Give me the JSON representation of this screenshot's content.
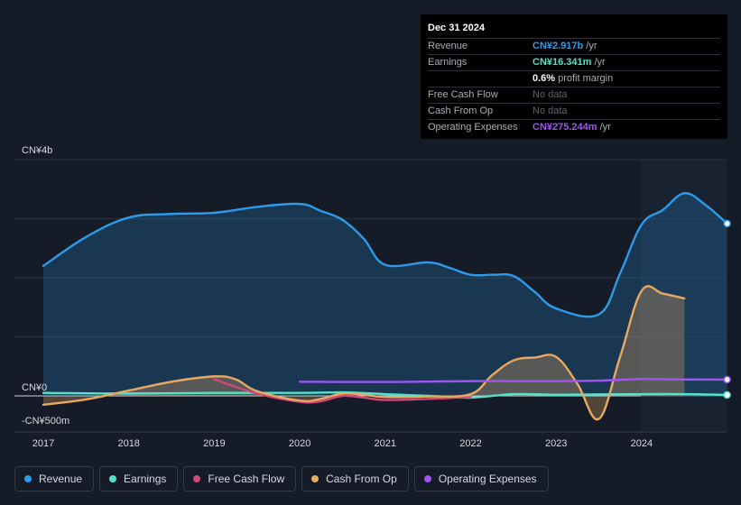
{
  "tooltip": {
    "date": "Dec 31 2024",
    "rows": [
      {
        "label": "Revenue",
        "value": "CN¥2.917b",
        "unit": "/yr",
        "color": "#2e9bea"
      },
      {
        "label": "Earnings",
        "value": "CN¥16.341m",
        "unit": "/yr",
        "color": "#54e3c8"
      },
      {
        "label": "",
        "value": "0.6%",
        "unit": "profit margin",
        "color": "#ffffff"
      },
      {
        "label": "Free Cash Flow",
        "value": "No data",
        "unit": "",
        "color": "nodata"
      },
      {
        "label": "Cash From Op",
        "value": "No data",
        "unit": "",
        "color": "nodata"
      },
      {
        "label": "Operating Expenses",
        "value": "CN¥275.244m",
        "unit": "/yr",
        "color": "#a154f2"
      }
    ]
  },
  "legend": [
    {
      "label": "Revenue",
      "color": "#2e9bea"
    },
    {
      "label": "Earnings",
      "color": "#54e3c8"
    },
    {
      "label": "Free Cash Flow",
      "color": "#d3487a"
    },
    {
      "label": "Cash From Op",
      "color": "#e8aa62"
    },
    {
      "label": "Operating Expenses",
      "color": "#a154f2"
    }
  ],
  "chart_data": {
    "type": "area",
    "y_axis_labels": [
      {
        "value": 4000,
        "label": "CN¥4b"
      },
      {
        "value": 0,
        "label": "CN¥0"
      },
      {
        "value": -500,
        "label": "-CN¥500m"
      }
    ],
    "ylim": [
      -500,
      4000
    ],
    "xlim": [
      2017,
      2025
    ],
    "x_ticks": [
      2017,
      2018,
      2019,
      2020,
      2021,
      2022,
      2023,
      2024
    ],
    "forecast_start": 2024,
    "series": [
      {
        "name": "Revenue",
        "color": "#2e9bea",
        "filled": true,
        "points": [
          [
            2017,
            2200
          ],
          [
            2017.5,
            2690
          ],
          [
            2018,
            3020
          ],
          [
            2018.5,
            3080
          ],
          [
            2019,
            3100
          ],
          [
            2019.5,
            3200
          ],
          [
            2020,
            3250
          ],
          [
            2020.25,
            3130
          ],
          [
            2020.5,
            2980
          ],
          [
            2020.75,
            2660
          ],
          [
            2021,
            2220
          ],
          [
            2021.5,
            2260
          ],
          [
            2021.75,
            2170
          ],
          [
            2022,
            2050
          ],
          [
            2022.25,
            2050
          ],
          [
            2022.5,
            2030
          ],
          [
            2022.75,
            1760
          ],
          [
            2023,
            1480
          ],
          [
            2023.5,
            1380
          ],
          [
            2023.75,
            2080
          ],
          [
            2024,
            2900
          ],
          [
            2024.25,
            3150
          ],
          [
            2024.5,
            3430
          ],
          [
            2024.75,
            3230
          ],
          [
            2025,
            2917
          ]
        ]
      },
      {
        "name": "Earnings",
        "color": "#54e3c8",
        "filled": false,
        "points": [
          [
            2017,
            50
          ],
          [
            2018,
            40
          ],
          [
            2019,
            50
          ],
          [
            2020,
            50
          ],
          [
            2020.5,
            60
          ],
          [
            2021,
            30
          ],
          [
            2021.5,
            0
          ],
          [
            2022,
            -30
          ],
          [
            2022.5,
            30
          ],
          [
            2023,
            20
          ],
          [
            2023.5,
            25
          ],
          [
            2024,
            30
          ],
          [
            2024.5,
            30
          ],
          [
            2025,
            16
          ]
        ]
      },
      {
        "name": "Free Cash Flow",
        "color": "#d3487a",
        "filled": false,
        "points": [
          [
            2019,
            280
          ],
          [
            2019.5,
            40
          ],
          [
            2020,
            -100
          ],
          [
            2020.25,
            -90
          ],
          [
            2020.5,
            0
          ],
          [
            2020.75,
            -30
          ],
          [
            2021,
            -70
          ],
          [
            2021.5,
            -50
          ],
          [
            2022,
            -20
          ]
        ]
      },
      {
        "name": "Cash From Op",
        "color": "#e8aa62",
        "filled": true,
        "points": [
          [
            2017,
            -150
          ],
          [
            2017.5,
            -60
          ],
          [
            2018,
            90
          ],
          [
            2018.5,
            240
          ],
          [
            2019,
            330
          ],
          [
            2019.25,
            280
          ],
          [
            2019.5,
            80
          ],
          [
            2020,
            -80
          ],
          [
            2020.25,
            -50
          ],
          [
            2020.5,
            40
          ],
          [
            2020.75,
            20
          ],
          [
            2021,
            -20
          ],
          [
            2021.5,
            -10
          ],
          [
            2022,
            30
          ],
          [
            2022.25,
            350
          ],
          [
            2022.5,
            600
          ],
          [
            2022.75,
            650
          ],
          [
            2023,
            660
          ],
          [
            2023.25,
            200
          ],
          [
            2023.5,
            -390
          ],
          [
            2023.75,
            670
          ],
          [
            2024,
            1780
          ],
          [
            2024.25,
            1730
          ],
          [
            2024.5,
            1650
          ]
        ]
      },
      {
        "name": "Operating Expenses",
        "color": "#a154f2",
        "filled": false,
        "points": [
          [
            2020,
            240
          ],
          [
            2021,
            235
          ],
          [
            2022,
            250
          ],
          [
            2022.5,
            250
          ],
          [
            2023,
            250
          ],
          [
            2023.5,
            258
          ],
          [
            2024,
            285
          ],
          [
            2024.5,
            278
          ],
          [
            2025,
            275
          ]
        ]
      }
    ]
  }
}
